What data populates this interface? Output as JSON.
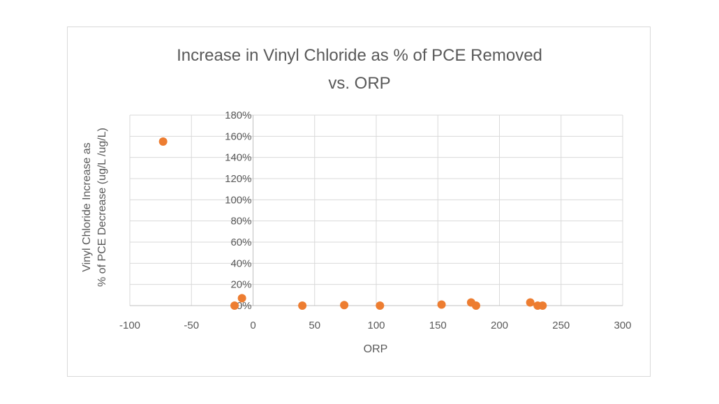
{
  "chart_data": {
    "type": "scatter",
    "title": [
      "Increase in Vinyl Chloride as % of PCE Removed",
      "vs. ORP"
    ],
    "xlabel": "ORP",
    "ylabel": [
      "Vinyl Chloride Increase as",
      "% of PCE Decrease (ug/L /ug/L)"
    ],
    "xlim": [
      -100,
      300
    ],
    "ylim": [
      0,
      1.8
    ],
    "x_ticks": [
      -100,
      -50,
      0,
      50,
      100,
      150,
      200,
      250,
      300
    ],
    "x_tick_labels": [
      "-100",
      "-50",
      "0",
      "50",
      "100",
      "150",
      "200",
      "250",
      "300"
    ],
    "y_ticks": [
      0,
      0.2,
      0.4,
      0.6,
      0.8,
      1.0,
      1.2,
      1.4,
      1.6,
      1.8
    ],
    "y_tick_labels": [
      "0%",
      "20%",
      "40%",
      "60%",
      "80%",
      "100%",
      "120%",
      "140%",
      "160%",
      "180%"
    ],
    "grid": true,
    "legend": "none",
    "marker_color": "#ed7d31",
    "series": [
      {
        "x": [
          -73,
          -9,
          -15,
          40,
          74,
          103,
          153,
          177,
          181,
          225,
          231,
          235
        ],
        "y": [
          1.55,
          0.07,
          0.0,
          0.0,
          0.005,
          0.0,
          0.01,
          0.03,
          0.0,
          0.03,
          0.0,
          0.0
        ]
      }
    ]
  }
}
